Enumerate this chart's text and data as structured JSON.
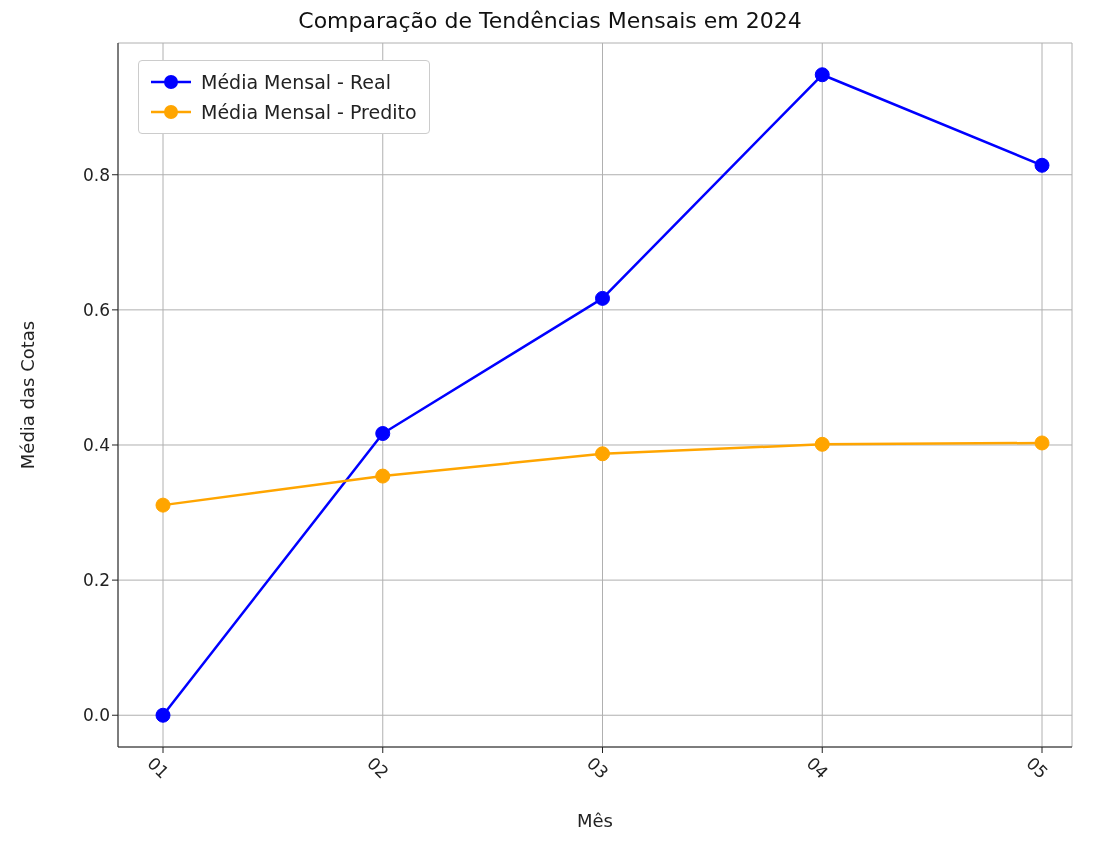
{
  "chart_data": {
    "type": "line",
    "title": "Comparação de Tendências Mensais em 2024",
    "xlabel": "Mês",
    "ylabel": "Média das Cotas",
    "categories": [
      "01",
      "02",
      "03",
      "04",
      "05"
    ],
    "series": [
      {
        "name": "Média Mensal - Real",
        "color": "#0000ff",
        "values": [
          0.0,
          0.417,
          0.617,
          0.948,
          0.814
        ]
      },
      {
        "name": "Média Mensal - Predito",
        "color": "#ffa500",
        "values": [
          0.311,
          0.354,
          0.387,
          0.401,
          0.403
        ]
      }
    ],
    "ylim": [
      -0.047,
      0.995
    ],
    "yticks": [
      {
        "value": 0,
        "label": "0.0"
      },
      {
        "value": 0.2,
        "label": "0.2"
      },
      {
        "value": 0.4,
        "label": "0.4"
      },
      {
        "value": 0.6,
        "label": "0.6"
      },
      {
        "value": 0.8,
        "label": "0.8"
      }
    ],
    "grid": true,
    "legend": "top left",
    "marker": "circle",
    "line_style": "solid"
  }
}
